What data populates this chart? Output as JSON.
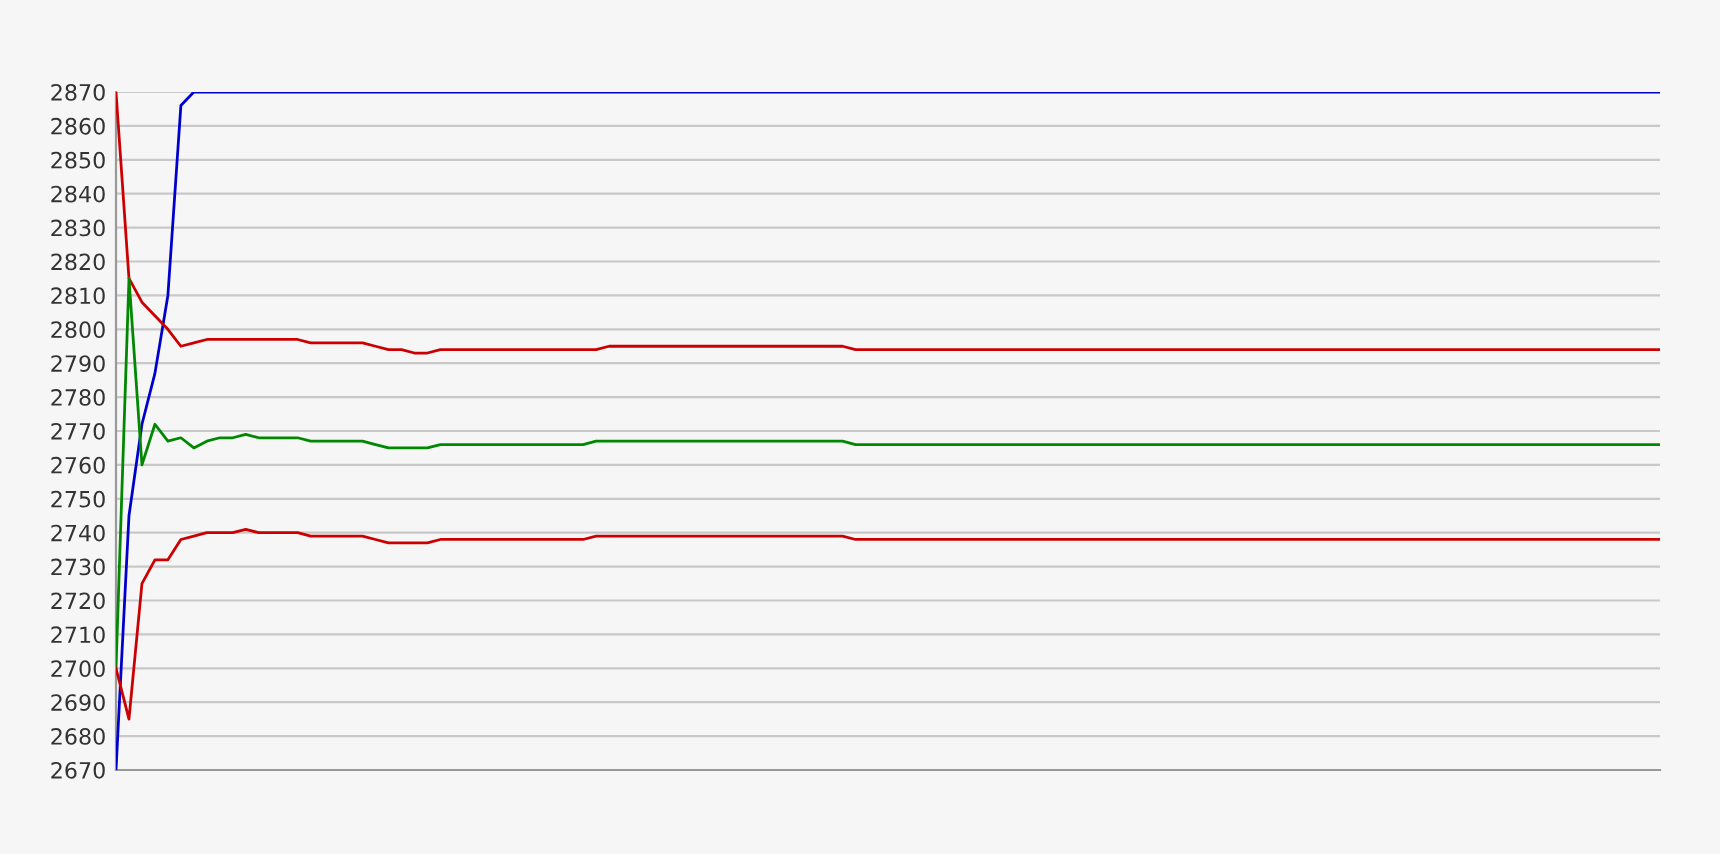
{
  "chart_data": {
    "type": "line",
    "categories": [
      null,
      null,
      null,
      null,
      null,
      null,
      null,
      null,
      null,
      null,
      null,
      null,
      null,
      null,
      null,
      null,
      null,
      null,
      null,
      null,
      null,
      null,
      null,
      null,
      null,
      null,
      null,
      null,
      null,
      null,
      null,
      null,
      null,
      null,
      null,
      null,
      null,
      null,
      null,
      null,
      null,
      null,
      null,
      null,
      null,
      null,
      null,
      null,
      null,
      null,
      null,
      null,
      null,
      null,
      null,
      null,
      null,
      null,
      null,
      null,
      null,
      null,
      null,
      null,
      null,
      null,
      null,
      null,
      null,
      null,
      null,
      null,
      null,
      null,
      null,
      null,
      null,
      null,
      null,
      null,
      null,
      null,
      null,
      null,
      null,
      null,
      null,
      null,
      null,
      null,
      null,
      null,
      null,
      null,
      null,
      null,
      null,
      null,
      null,
      null,
      null,
      null,
      null,
      null,
      null,
      null,
      null,
      null,
      null,
      null,
      null,
      null,
      null,
      null,
      null,
      null,
      null,
      null,
      null,
      null
    ],
    "ylim": [
      2670,
      2870
    ],
    "yticks": [
      2670,
      2680,
      2690,
      2700,
      2710,
      2720,
      2730,
      2740,
      2750,
      2760,
      2770,
      2780,
      2790,
      2800,
      2810,
      2820,
      2830,
      2840,
      2850,
      2860,
      2870
    ],
    "grid": "y",
    "marker": "none",
    "line_style": "solid",
    "series": [
      {
        "color": "#0000cc",
        "values": [
          2670,
          2745,
          2772,
          2787,
          2810,
          2866,
          2870,
          2870,
          2870,
          2870,
          2870,
          2870,
          2870,
          2870,
          2870,
          2870,
          2870,
          2870,
          2870,
          2870,
          2870,
          2870,
          2870,
          2870,
          2870,
          2870,
          2870,
          2870,
          2870,
          2870,
          2870,
          2870,
          2870,
          2870,
          2870,
          2870,
          2870,
          2870,
          2870,
          2870,
          2870,
          2870,
          2870,
          2870,
          2870,
          2870,
          2870,
          2870,
          2870,
          2870,
          2870,
          2870,
          2870,
          2870,
          2870,
          2870,
          2870,
          2870,
          2870,
          2870,
          2870,
          2870,
          2870,
          2870,
          2870,
          2870,
          2870,
          2870,
          2870,
          2870,
          2870,
          2870,
          2870,
          2870,
          2870,
          2870,
          2870,
          2870,
          2870,
          2870,
          2870,
          2870,
          2870,
          2870,
          2870,
          2870,
          2870,
          2870,
          2870,
          2870,
          2870,
          2870,
          2870,
          2870,
          2870,
          2870,
          2870,
          2870,
          2870,
          2870,
          2870,
          2870,
          2870,
          2870,
          2870,
          2870,
          2870,
          2870,
          2870,
          2870,
          2870,
          2870,
          2870,
          2870,
          2870,
          2870,
          2870,
          2870,
          2870,
          2870
        ]
      },
      {
        "color": "#cc0000",
        "values": [
          2870,
          2815,
          2808,
          2804,
          2800,
          2795,
          2796,
          2797,
          2797,
          2797,
          2797,
          2797,
          2797,
          2797,
          2797,
          2796,
          2796,
          2796,
          2796,
          2796,
          2795,
          2794,
          2794,
          2793,
          2793,
          2794,
          2794,
          2794,
          2794,
          2794,
          2794,
          2794,
          2794,
          2794,
          2794,
          2794,
          2794,
          2794,
          2795,
          2795,
          2795,
          2795,
          2795,
          2795,
          2795,
          2795,
          2795,
          2795,
          2795,
          2795,
          2795,
          2795,
          2795,
          2795,
          2795,
          2795,
          2795,
          2794,
          2794,
          2794,
          2794,
          2794,
          2794,
          2794,
          2794,
          2794,
          2794,
          2794,
          2794,
          2794,
          2794,
          2794,
          2794,
          2794,
          2794,
          2794,
          2794,
          2794,
          2794,
          2794,
          2794,
          2794,
          2794,
          2794,
          2794,
          2794,
          2794,
          2794,
          2794,
          2794,
          2794,
          2794,
          2794,
          2794,
          2794,
          2794,
          2794,
          2794,
          2794,
          2794,
          2794,
          2794,
          2794,
          2794,
          2794,
          2794,
          2794,
          2794,
          2794,
          2794,
          2794,
          2794,
          2794,
          2794,
          2794,
          2794,
          2794,
          2794,
          2794,
          2794
        ]
      },
      {
        "color": "#008800",
        "values": [
          2700,
          2815,
          2760,
          2772,
          2767,
          2768,
          2765,
          2767,
          2768,
          2768,
          2769,
          2768,
          2768,
          2768,
          2768,
          2767,
          2767,
          2767,
          2767,
          2767,
          2766,
          2765,
          2765,
          2765,
          2765,
          2766,
          2766,
          2766,
          2766,
          2766,
          2766,
          2766,
          2766,
          2766,
          2766,
          2766,
          2766,
          2767,
          2767,
          2767,
          2767,
          2767,
          2767,
          2767,
          2767,
          2767,
          2767,
          2767,
          2767,
          2767,
          2767,
          2767,
          2767,
          2767,
          2767,
          2767,
          2767,
          2766,
          2766,
          2766,
          2766,
          2766,
          2766,
          2766,
          2766,
          2766,
          2766,
          2766,
          2766,
          2766,
          2766,
          2766,
          2766,
          2766,
          2766,
          2766,
          2766,
          2766,
          2766,
          2766,
          2766,
          2766,
          2766,
          2766,
          2766,
          2766,
          2766,
          2766,
          2766,
          2766,
          2766,
          2766,
          2766,
          2766,
          2766,
          2766,
          2766,
          2766,
          2766,
          2766,
          2766,
          2766,
          2766,
          2766,
          2766,
          2766,
          2766,
          2766,
          2766,
          2766,
          2766,
          2766,
          2766,
          2766,
          2766,
          2766,
          2766,
          2766,
          2766,
          2766
        ]
      },
      {
        "color": "#cc0000",
        "values": [
          2700,
          2685,
          2725,
          2732,
          2732,
          2738,
          2739,
          2740,
          2740,
          2740,
          2741,
          2740,
          2740,
          2740,
          2740,
          2739,
          2739,
          2739,
          2739,
          2739,
          2738,
          2737,
          2737,
          2737,
          2737,
          2738,
          2738,
          2738,
          2738,
          2738,
          2738,
          2738,
          2738,
          2738,
          2738,
          2738,
          2738,
          2739,
          2739,
          2739,
          2739,
          2739,
          2739,
          2739,
          2739,
          2739,
          2739,
          2739,
          2739,
          2739,
          2739,
          2739,
          2739,
          2739,
          2739,
          2739,
          2739,
          2738,
          2738,
          2738,
          2738,
          2738,
          2738,
          2738,
          2738,
          2738,
          2738,
          2738,
          2738,
          2738,
          2738,
          2738,
          2738,
          2738,
          2738,
          2738,
          2738,
          2738,
          2738,
          2738,
          2738,
          2738,
          2738,
          2738,
          2738,
          2738,
          2738,
          2738,
          2738,
          2738,
          2738,
          2738,
          2738,
          2738,
          2738,
          2738,
          2738,
          2738,
          2738,
          2738,
          2738,
          2738,
          2738,
          2738,
          2738,
          2738,
          2738,
          2738,
          2738,
          2738,
          2738,
          2738,
          2738,
          2738,
          2738,
          2738,
          2738,
          2738,
          2738,
          2738
        ]
      }
    ]
  }
}
